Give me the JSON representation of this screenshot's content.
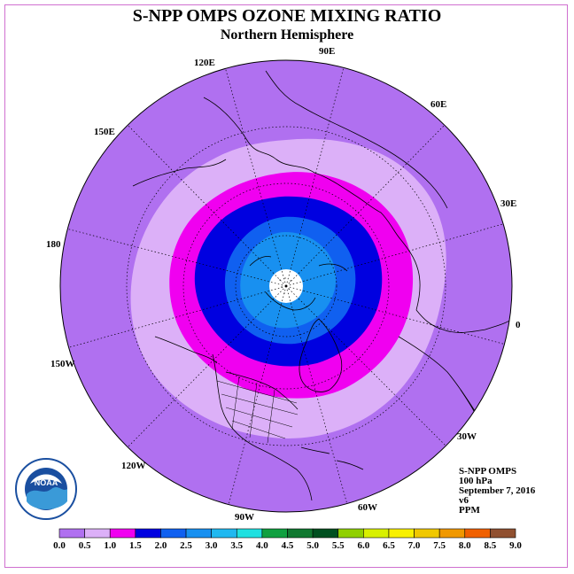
{
  "title": "S-NPP OMPS OZONE MIXING RATIO",
  "subtitle": "Northern Hemisphere",
  "info": {
    "instrument": "S-NPP OMPS",
    "level": "100 hPa",
    "date": "September 7, 2016",
    "version": "v6",
    "unit": "PPM"
  },
  "longitude_labels": [
    "90E",
    "60E",
    "30E",
    "0",
    "30W",
    "60W",
    "90W",
    "120W",
    "150W",
    "180",
    "150E",
    "120E"
  ],
  "colorbar": {
    "ticks": [
      "0.0",
      "0.5",
      "1.0",
      "1.5",
      "2.0",
      "2.5",
      "3.0",
      "3.5",
      "4.0",
      "4.5",
      "5.0",
      "5.5",
      "6.0",
      "6.5",
      "7.0",
      "7.5",
      "8.0",
      "8.5",
      "9.0"
    ],
    "colors": [
      "#b070f0",
      "#dcb0f8",
      "#f000f0",
      "#0000e0",
      "#1060f0",
      "#1890f0",
      "#20b8f0",
      "#20e0e0",
      "#10a040",
      "#107830",
      "#005020",
      "#90d000",
      "#d8f000",
      "#f8f000",
      "#f0c800",
      "#f09800",
      "#f06000",
      "#f00000",
      "#905030"
    ]
  },
  "logo": {
    "text": "NOAA",
    "ring_text": "NATIONAL OCEANIC AND ATMOSPHERIC ADMINISTRATION · U.S. DEPARTMENT OF COMMERCE"
  },
  "map_colors": {
    "outer": "#b070f0",
    "band_0_5": "#dcb0f8",
    "band_1_0": "#f000f0",
    "band_1_5": "#0000e0",
    "band_2_0": "#1060f0",
    "band_2_5": "#1890f0",
    "pole_hole": "#ffffff"
  }
}
